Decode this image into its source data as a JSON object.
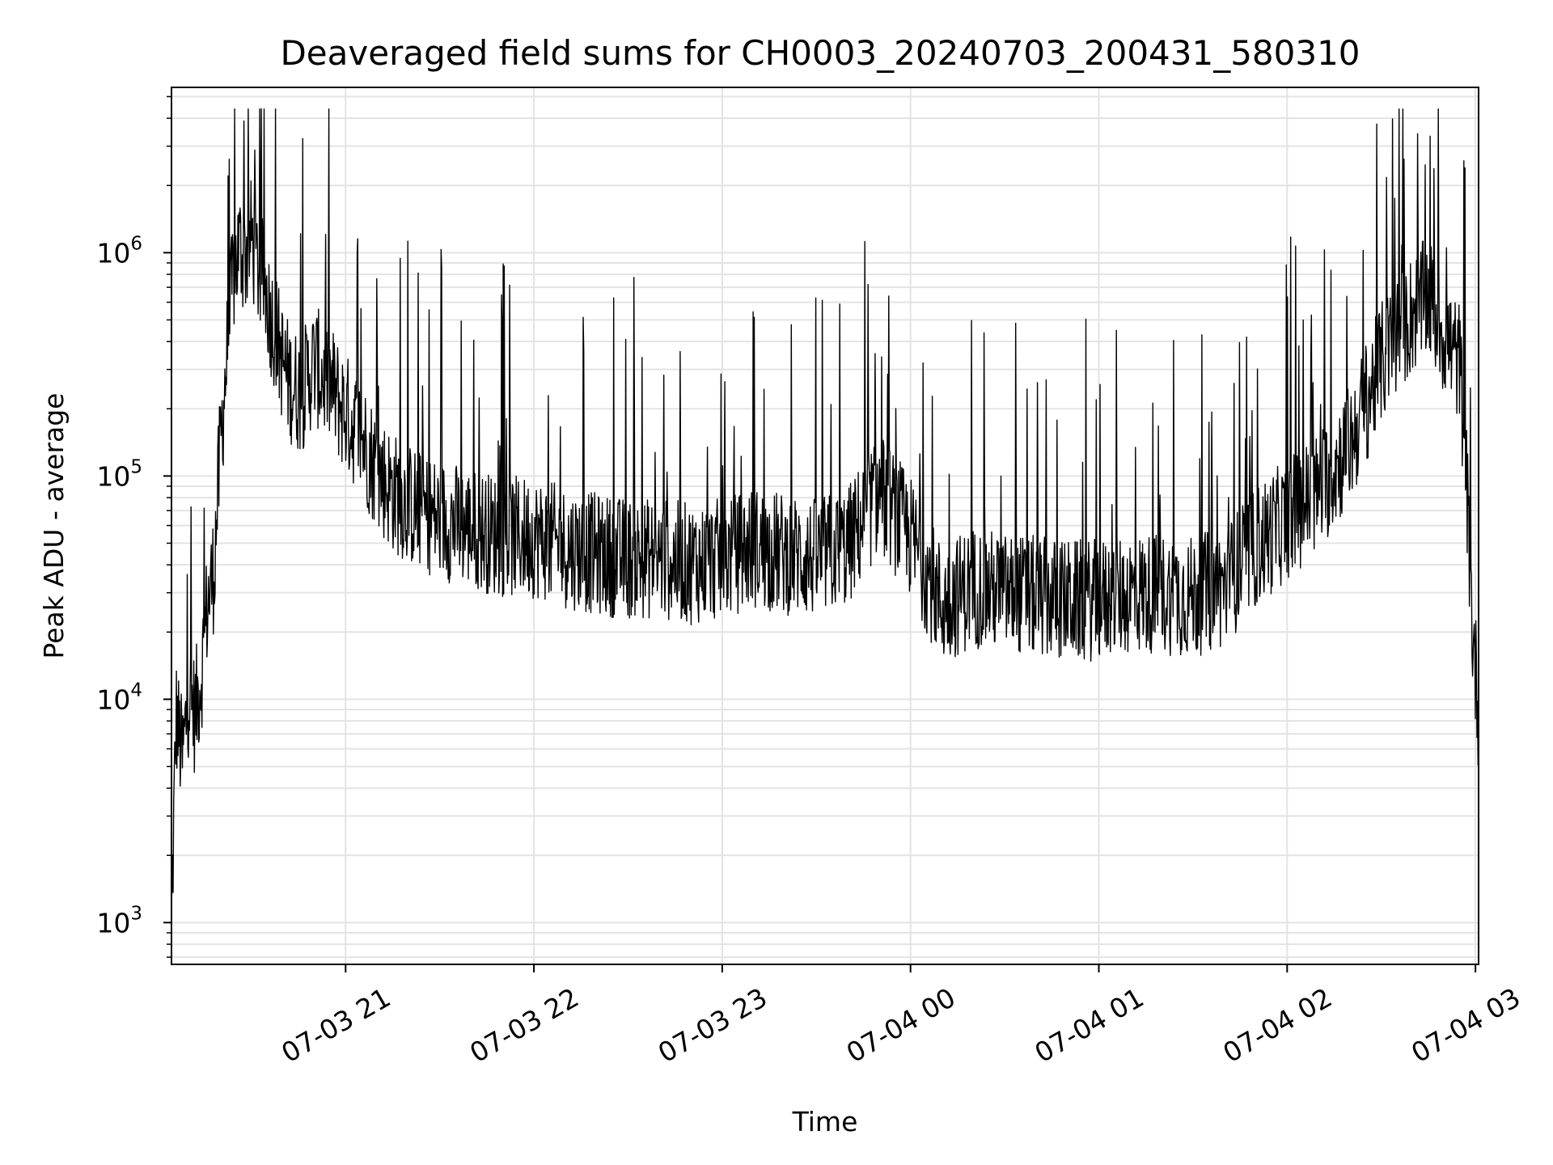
{
  "chart_data": {
    "type": "line",
    "title": "Deaveraged field sums for CH0003_20240703_200431_580310",
    "xlabel": "Time",
    "ylabel": "Peak ADU - average",
    "yscale": "log",
    "ylim": [
      650,
      5500000
    ],
    "xlim": [
      "2024-07-03 20:04:31",
      "2024-07-04 03:01:00"
    ],
    "grid": true,
    "line_color": "#000000",
    "grid_color": "#e3e3e3",
    "x_ticks": [
      {
        "t": "2024-07-03 21:00",
        "label": "07-03 21"
      },
      {
        "t": "2024-07-03 22:00",
        "label": "07-03 22"
      },
      {
        "t": "2024-07-03 23:00",
        "label": "07-03 23"
      },
      {
        "t": "2024-07-04 00:00",
        "label": "07-04 00"
      },
      {
        "t": "2024-07-04 01:00",
        "label": "07-04 01"
      },
      {
        "t": "2024-07-04 02:00",
        "label": "07-04 02"
      },
      {
        "t": "2024-07-04 03:00",
        "label": "07-04 03"
      }
    ],
    "y_ticks": [
      {
        "value": 1000,
        "base": "10",
        "exp": "3"
      },
      {
        "value": 10000,
        "base": "10",
        "exp": "4"
      },
      {
        "value": 100000,
        "base": "10",
        "exp": "5"
      },
      {
        "value": 1000000,
        "base": "10",
        "exp": "6"
      }
    ],
    "series": [
      {
        "x": [
          "2024-07-03 20:04:31",
          "2024-07-03 20:06",
          "2024-07-03 20:08",
          "2024-07-03 20:10",
          "2024-07-03 20:12",
          "2024-07-03 20:14",
          "2024-07-03 20:16",
          "2024-07-03 20:18",
          "2024-07-03 20:20",
          "2024-07-03 20:22",
          "2024-07-03 20:24",
          "2024-07-03 20:26",
          "2024-07-03 20:28",
          "2024-07-03 20:30",
          "2024-07-03 20:32",
          "2024-07-03 20:34",
          "2024-07-03 20:36",
          "2024-07-03 20:38",
          "2024-07-03 20:40",
          "2024-07-03 20:42",
          "2024-07-03 20:44",
          "2024-07-03 20:46",
          "2024-07-03 20:48",
          "2024-07-03 20:50",
          "2024-07-03 20:52",
          "2024-07-03 20:54",
          "2024-07-03 20:56",
          "2024-07-03 20:58",
          "2024-07-03 21:00",
          "2024-07-03 21:05",
          "2024-07-03 21:10",
          "2024-07-03 21:15",
          "2024-07-03 21:20",
          "2024-07-03 21:30",
          "2024-07-03 21:40",
          "2024-07-03 21:50",
          "2024-07-03 22:00",
          "2024-07-03 22:10",
          "2024-07-03 22:20",
          "2024-07-03 22:30",
          "2024-07-03 22:40",
          "2024-07-03 22:50",
          "2024-07-03 23:00",
          "2024-07-03 23:10",
          "2024-07-03 23:20",
          "2024-07-03 23:30",
          "2024-07-03 23:40",
          "2024-07-03 23:50",
          "2024-07-04 00:00",
          "2024-07-04 00:10",
          "2024-07-04 00:20",
          "2024-07-04 00:30",
          "2024-07-04 00:40",
          "2024-07-04 00:50",
          "2024-07-04 01:00",
          "2024-07-04 01:10",
          "2024-07-04 01:20",
          "2024-07-04 01:30",
          "2024-07-04 01:40",
          "2024-07-04 01:50",
          "2024-07-04 02:00",
          "2024-07-04 02:10",
          "2024-07-04 02:20",
          "2024-07-04 02:30",
          "2024-07-04 02:35",
          "2024-07-04 02:40",
          "2024-07-04 02:45",
          "2024-07-04 02:50",
          "2024-07-04 02:55",
          "2024-07-04 02:57",
          "2024-07-04 02:59",
          "2024-07-04 03:01"
        ],
        "y": [
          900,
          8000,
          5000,
          10000,
          8000,
          12000,
          25000,
          35000,
          120000,
          300000,
          700000,
          1000000,
          900000,
          1100000,
          800000,
          700000,
          500000,
          400000,
          300000,
          250000,
          230000,
          220000,
          260000,
          300000,
          270000,
          250000,
          230000,
          200000,
          180000,
          140000,
          100000,
          80000,
          70000,
          60000,
          55000,
          50000,
          50000,
          45000,
          42000,
          40000,
          40000,
          38000,
          40000,
          45000,
          42000,
          40000,
          45000,
          80000,
          50000,
          25000,
          30000,
          28000,
          27000,
          26000,
          26000,
          28000,
          28000,
          27000,
          30000,
          45000,
          60000,
          80000,
          130000,
          300000,
          400000,
          500000,
          600000,
          400000,
          300000,
          100000,
          20000,
          8000
        ],
        "y_spikes_high": [
          1200000,
          3500000,
          1300000,
          1000000,
          900000,
          800000,
          950000,
          1100000,
          1000000,
          900000,
          850000,
          800000,
          900000,
          950000,
          900000,
          700000,
          1000000,
          1100000,
          1300000,
          1200000,
          2000000,
          2300000,
          2000000
        ],
        "y_band_low": [
          3000,
          40000,
          35000,
          30000,
          28000,
          27000,
          30000,
          25000,
          20000,
          15000,
          12000,
          16000,
          18000,
          20000,
          25000,
          40000,
          60000,
          100000,
          150000,
          200000,
          50000,
          3000
        ]
      }
    ]
  }
}
